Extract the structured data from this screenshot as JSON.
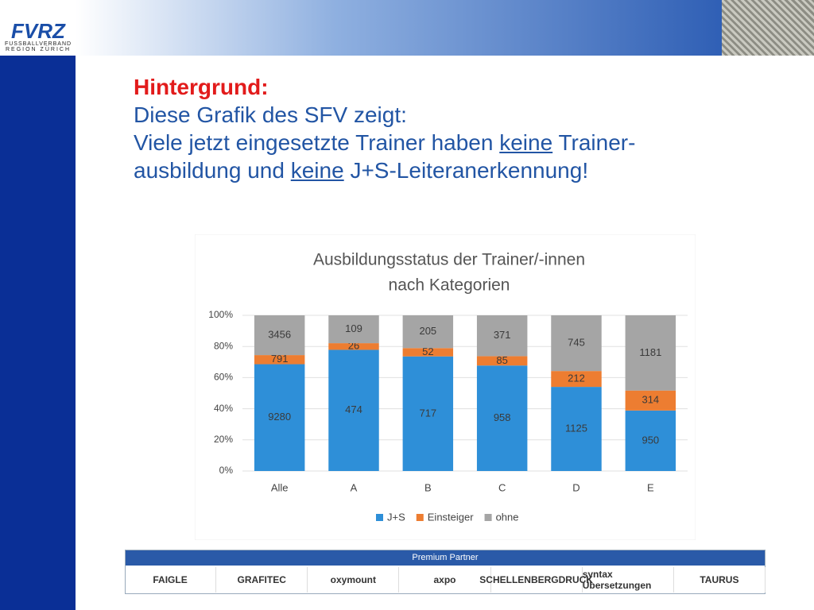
{
  "header": {
    "logo_title": "FVRZ",
    "logo_line1": "FUSSBALLVERBAND",
    "logo_line2": "REGION ZÜRICH"
  },
  "intro": {
    "heading": "Hintergrund:",
    "line1": "Diese Grafik des SFV zeigt:",
    "line2": [
      "Viele jetzt eingesetzte Trainer haben ",
      "keine",
      " Trainer-"
    ],
    "line3": [
      "ausbildung und ",
      "keine",
      " J+S-Leiteranerkennung!"
    ]
  },
  "chart_data": {
    "type": "stacked_percent_bar",
    "title": [
      "Ausbildungsstatus der Trainer/-innen",
      "nach Kategorien"
    ],
    "categories": [
      "Alle",
      "A",
      "B",
      "C",
      "D",
      "E"
    ],
    "series": [
      {
        "name": "J+S",
        "color": "#2e8fd8",
        "values": [
          9280,
          474,
          717,
          958,
          1125,
          950
        ]
      },
      {
        "name": "Einsteiger",
        "color": "#ed7d31",
        "values": [
          791,
          26,
          52,
          85,
          212,
          314
        ]
      },
      {
        "name": "ohne",
        "color": "#a5a5a5",
        "values": [
          3456,
          109,
          205,
          371,
          745,
          1181
        ]
      }
    ],
    "ylim": [
      0,
      100
    ],
    "yticks": [
      {
        "value": 0,
        "label": "0%"
      },
      {
        "value": 20,
        "label": "20%"
      },
      {
        "value": 40,
        "label": "40%"
      },
      {
        "value": 60,
        "label": "60%"
      },
      {
        "value": 80,
        "label": "80%"
      },
      {
        "value": 100,
        "label": "100%"
      }
    ],
    "grid": true,
    "legend": "bottom"
  },
  "partners": {
    "title": "Premium Partner",
    "logos": [
      "FAIGLE",
      "GRAFITEC",
      "oxymount",
      "axpo",
      "SCHELLENBERGDRUCK",
      "syntax Übersetzungen",
      "TAURUS"
    ]
  }
}
